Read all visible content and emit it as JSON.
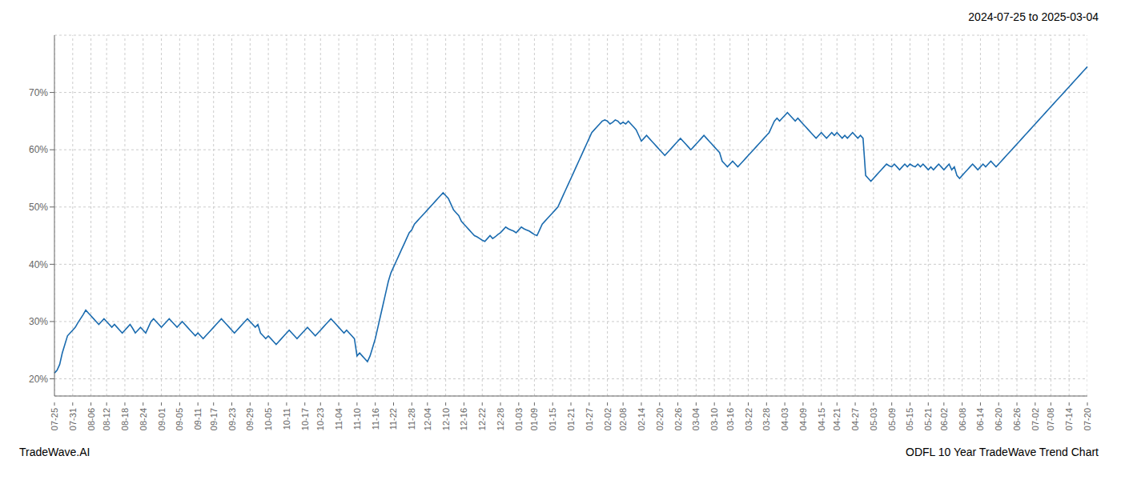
{
  "chart_data": {
    "type": "line",
    "title": "ODFL 10 Year TradeWave Trend Chart",
    "subtitle": "2024-07-25 to 2025-03-04",
    "annotations": [
      "TradeWave.AI"
    ],
    "categories": [
      "07-25",
      null,
      null,
      null,
      null,
      null,
      null,
      "07-31",
      null,
      null,
      null,
      null,
      null,
      null,
      "08-06",
      null,
      null,
      null,
      null,
      null,
      "08-12",
      null,
      null,
      null,
      null,
      null,
      null,
      "08-18",
      null,
      null,
      null,
      null,
      null,
      null,
      "08-24",
      null,
      null,
      null,
      null,
      null,
      null,
      "09-01",
      null,
      null,
      null,
      null,
      null,
      null,
      "09-05",
      null,
      null,
      null,
      null,
      null,
      null,
      "09-11",
      null,
      null,
      null,
      null,
      null,
      "09-17",
      null,
      null,
      null,
      null,
      null,
      null,
      "09-23",
      null,
      null,
      null,
      null,
      null,
      null,
      "09-29",
      null,
      null,
      null,
      null,
      null,
      null,
      "10-05",
      null,
      null,
      null,
      null,
      null,
      null,
      "10-11",
      null,
      null,
      null,
      null,
      null,
      null,
      "10-17",
      null,
      null,
      null,
      null,
      null,
      "10-23",
      null,
      null,
      null,
      null,
      null,
      null,
      "11-04",
      null,
      null,
      null,
      null,
      null,
      null,
      "11-10",
      null,
      null,
      null,
      null,
      null,
      null,
      "11-16",
      null,
      null,
      null,
      null,
      null,
      null,
      "11-22",
      null,
      null,
      null,
      null,
      null,
      null,
      "11-28",
      null,
      null,
      null,
      null,
      null,
      "12-04",
      null,
      null,
      null,
      null,
      null,
      null,
      "12-10",
      null,
      null,
      null,
      null,
      null,
      null,
      "12-16",
      null,
      null,
      null,
      null,
      null,
      null,
      "12-22",
      null,
      null,
      null,
      null,
      null,
      null,
      "12-28",
      null,
      null,
      null,
      null,
      null,
      null,
      "01-03",
      null,
      null,
      null,
      null,
      null,
      "01-09",
      null,
      null,
      null,
      null,
      null,
      null,
      "01-15",
      null,
      null,
      null,
      null,
      null,
      null,
      "01-21",
      null,
      null,
      null,
      null,
      null,
      null,
      "01-27",
      null,
      null,
      null,
      null,
      null,
      null,
      "02-02",
      null,
      null,
      null,
      null,
      null,
      "02-08",
      null,
      null,
      null,
      null,
      null,
      null,
      "02-14",
      null,
      null,
      null,
      null,
      null,
      null,
      "02-20",
      null,
      null,
      null,
      null,
      null,
      null,
      "02-26",
      null,
      null,
      null,
      null,
      null,
      null,
      "03-04",
      null,
      null,
      null,
      null,
      null,
      null,
      "03-10",
      null,
      null,
      null,
      null,
      null,
      "03-16",
      null,
      null,
      null,
      null,
      null,
      null,
      "03-22",
      null,
      null,
      null,
      null,
      null,
      null,
      "03-28",
      null,
      null,
      null,
      null,
      null,
      null,
      "04-03",
      null,
      null,
      null,
      null,
      null,
      null,
      "04-09",
      null,
      null,
      null,
      null,
      null,
      null,
      "04-15",
      null,
      null,
      null,
      null,
      null,
      "04-21",
      null,
      null,
      null,
      null,
      null,
      null,
      "04-27",
      null,
      null,
      null,
      null,
      null,
      null,
      "05-03",
      null,
      null,
      null,
      null,
      null,
      null,
      "05-09",
      null,
      null,
      null,
      null,
      null,
      null,
      "05-15",
      null,
      null,
      null,
      null,
      null,
      null,
      "05-21",
      null,
      null,
      null,
      null,
      null,
      "06-02",
      null,
      null,
      null,
      null,
      null,
      null,
      "06-08",
      null,
      null,
      null,
      null,
      null,
      null,
      "06-14",
      null,
      null,
      null,
      null,
      null,
      null,
      "06-20",
      null,
      null,
      null,
      null,
      null,
      null,
      "06-26",
      null,
      null,
      null,
      null,
      null,
      null,
      "07-02",
      null,
      null,
      null,
      null,
      null,
      "07-08",
      null,
      null,
      null,
      null,
      null,
      null,
      "07-14",
      null,
      null,
      null,
      null,
      null,
      null,
      "07-20"
    ],
    "values": [
      21.0,
      21.5,
      22.5,
      24.5,
      26.0,
      27.5,
      28.0,
      28.5,
      29.0,
      29.8,
      30.5,
      31.2,
      32.0,
      31.5,
      31.0,
      30.5,
      30.0,
      29.5,
      30.0,
      30.5,
      30.0,
      29.5,
      29.0,
      29.5,
      29.0,
      28.5,
      28.0,
      28.5,
      29.0,
      29.5,
      28.8,
      28.0,
      28.5,
      29.0,
      28.5,
      28.0,
      29.0,
      30.0,
      30.5,
      30.0,
      29.5,
      29.0,
      29.5,
      30.0,
      30.5,
      30.0,
      29.5,
      29.0,
      29.5,
      30.0,
      29.5,
      29.0,
      28.5,
      28.0,
      27.5,
      28.0,
      27.5,
      27.0,
      27.5,
      28.0,
      28.5,
      29.0,
      29.5,
      30.0,
      30.5,
      30.0,
      29.5,
      29.0,
      28.5,
      28.0,
      28.5,
      29.0,
      29.5,
      30.0,
      30.5,
      30.0,
      29.5,
      29.0,
      29.5,
      28.0,
      27.5,
      27.0,
      27.5,
      27.0,
      26.5,
      26.0,
      26.5,
      27.0,
      27.5,
      28.0,
      28.5,
      28.0,
      27.5,
      27.0,
      27.5,
      28.0,
      28.5,
      29.0,
      28.5,
      28.0,
      27.5,
      28.0,
      28.5,
      29.0,
      29.5,
      30.0,
      30.5,
      30.0,
      29.5,
      29.0,
      28.5,
      28.0,
      28.5,
      28.0,
      27.5,
      27.0,
      24.0,
      24.5,
      24.0,
      23.5,
      23.0,
      24.0,
      25.5,
      27.0,
      29.0,
      31.0,
      33.0,
      35.0,
      37.0,
      38.5,
      39.5,
      40.5,
      41.5,
      42.5,
      43.5,
      44.5,
      45.5,
      46.0,
      47.0,
      47.5,
      48.0,
      48.5,
      49.0,
      49.5,
      50.0,
      50.5,
      51.0,
      51.5,
      52.0,
      52.5,
      52.0,
      51.5,
      50.5,
      49.5,
      49.0,
      48.5,
      47.5,
      47.0,
      46.5,
      46.0,
      45.5,
      45.0,
      44.8,
      44.5,
      44.2,
      44.0,
      44.5,
      45.0,
      44.5,
      44.8,
      45.2,
      45.5,
      46.0,
      46.5,
      46.2,
      46.0,
      45.8,
      45.5,
      46.0,
      46.5,
      46.2,
      46.0,
      45.8,
      45.5,
      45.2,
      45.0,
      46.0,
      47.0,
      47.5,
      48.0,
      48.5,
      49.0,
      49.5,
      50.0,
      51.0,
      52.0,
      53.0,
      54.0,
      55.0,
      56.0,
      57.0,
      58.0,
      59.0,
      60.0,
      61.0,
      62.0,
      63.0,
      63.5,
      64.0,
      64.5,
      65.0,
      65.2,
      65.0,
      64.5,
      64.8,
      65.2,
      65.0,
      64.5,
      64.8,
      64.5,
      65.0,
      64.5,
      64.0,
      63.5,
      62.5,
      61.5,
      62.0,
      62.5,
      62.0,
      61.5,
      61.0,
      60.5,
      60.0,
      59.5,
      59.0,
      59.5,
      60.0,
      60.5,
      61.0,
      61.5,
      62.0,
      61.5,
      61.0,
      60.5,
      60.0,
      60.5,
      61.0,
      61.5,
      62.0,
      62.5,
      62.0,
      61.5,
      61.0,
      60.5,
      60.0,
      59.5,
      58.0,
      57.5,
      57.0,
      57.5,
      58.0,
      57.5,
      57.0,
      57.5,
      58.0,
      58.5,
      59.0,
      59.5,
      60.0,
      60.5,
      61.0,
      61.5,
      62.0,
      62.5,
      63.0,
      64.0,
      65.0,
      65.5,
      65.0,
      65.5,
      66.0,
      66.5,
      66.0,
      65.5,
      65.0,
      65.5,
      65.0,
      64.5,
      64.0,
      63.5,
      63.0,
      62.5,
      62.0,
      62.5,
      63.0,
      62.5,
      62.0,
      62.5,
      63.0,
      62.5,
      63.0,
      62.5,
      62.0,
      62.5,
      62.0,
      62.5,
      63.0,
      62.5,
      62.0,
      62.5,
      62.0,
      55.5,
      55.0,
      54.5,
      55.0,
      55.5,
      56.0,
      56.5,
      57.0,
      57.5,
      57.2,
      57.0,
      57.5,
      57.0,
      56.5,
      57.0,
      57.5,
      57.0,
      57.5,
      57.2,
      57.0,
      57.5,
      57.0,
      57.5,
      57.0,
      56.5,
      57.0,
      56.5,
      57.0,
      57.5,
      57.0,
      56.5,
      57.0,
      57.5,
      56.5,
      57.0,
      55.5,
      55.0,
      55.5,
      56.0,
      56.5,
      57.0,
      57.5,
      57.0,
      56.5,
      57.0,
      57.5,
      57.0,
      57.5,
      58.0,
      57.5,
      57.0,
      57.5,
      58.0,
      58.5,
      59.0,
      59.5,
      60.0,
      60.5,
      61.0,
      61.5,
      62.0,
      62.5,
      63.0,
      63.5,
      64.0,
      64.5,
      65.0,
      65.5,
      66.0,
      66.5,
      67.0,
      67.5,
      68.0,
      68.5,
      69.0,
      69.5,
      70.0,
      70.5,
      71.0,
      71.5,
      72.0,
      72.5,
      73.0,
      73.5,
      74.0,
      74.5
    ],
    "color": "#1a6baf",
    "ylim": [
      17,
      80
    ],
    "yticks": [
      {
        "value": 20,
        "label": "20%"
      },
      {
        "value": 30,
        "label": "30%"
      },
      {
        "value": 40,
        "label": "40%"
      },
      {
        "value": 50,
        "label": "50%"
      },
      {
        "value": 60,
        "label": "60%"
      },
      {
        "value": 70,
        "label": "70%"
      }
    ],
    "grid": true
  }
}
